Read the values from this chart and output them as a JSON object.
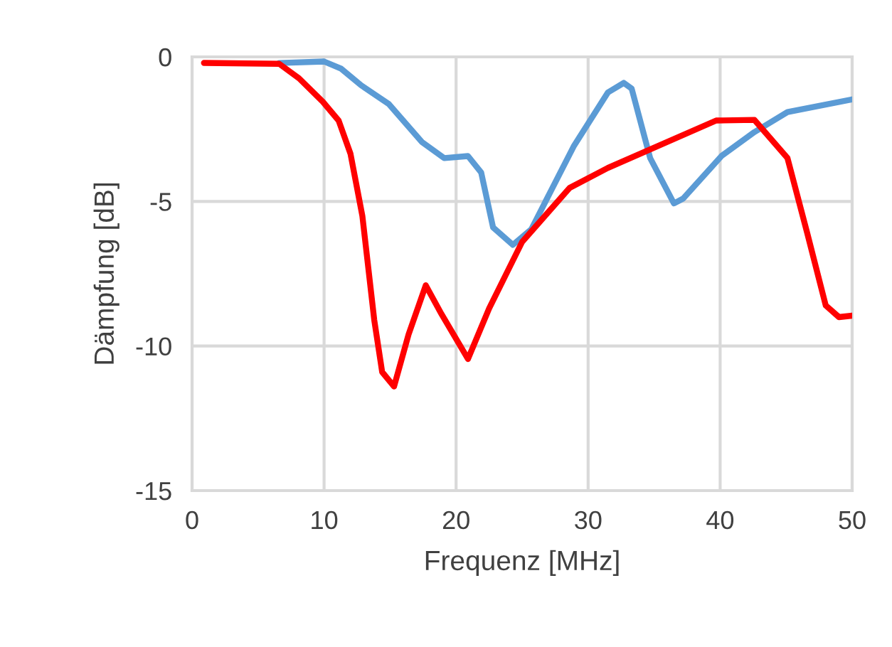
{
  "chart_data": {
    "type": "line",
    "xlabel": "Frequenz [MHz]",
    "ylabel": "Dämpfung [dB]",
    "xlim": [
      0,
      50
    ],
    "xticks": [
      0,
      10,
      20,
      30,
      40,
      50
    ],
    "ylim": [
      -15,
      0
    ],
    "yticks": [
      -15,
      -10,
      -5,
      0
    ],
    "grid": true,
    "marker": "none",
    "line_style": "solid",
    "series": [
      {
        "color": "#5b9bd5",
        "x": [
          6.6,
          10.0,
          11.3,
          12.8,
          14.9,
          17.4,
          19.1,
          20.9,
          21.9,
          22.8,
          24.3,
          25.7,
          28.9,
          31.5,
          32.7,
          33.3,
          34.7,
          36.5,
          37.2,
          40.1,
          42.6,
          45.1,
          50
        ],
        "values": [
          -0.21,
          -0.16,
          -0.41,
          -0.98,
          -1.63,
          -2.94,
          -3.5,
          -3.43,
          -4.0,
          -5.9,
          -6.5,
          -5.96,
          -3.1,
          -1.23,
          -0.9,
          -1.1,
          -3.5,
          -5.07,
          -4.9,
          -3.43,
          -2.6,
          -1.91,
          -1.47
        ]
      },
      {
        "color": "#ff0000",
        "x": [
          0.9,
          6.6,
          8.1,
          9.9,
          11.1,
          12.0,
          12.9,
          13.8,
          14.4,
          15.3,
          16.4,
          17.7,
          18.9,
          20.9,
          22.5,
          25.0,
          28.6,
          31.5,
          39.7,
          42.6,
          45.1,
          46.6,
          48.0,
          49,
          50
        ],
        "values": [
          -0.21,
          -0.24,
          -0.74,
          -1.55,
          -2.2,
          -3.35,
          -5.5,
          -9.1,
          -10.9,
          -11.4,
          -9.6,
          -7.9,
          -8.9,
          -10.45,
          -8.7,
          -6.4,
          -4.53,
          -3.84,
          -2.2,
          -2.18,
          -3.5,
          -6.1,
          -8.6,
          -9.0,
          -8.95
        ]
      }
    ]
  }
}
